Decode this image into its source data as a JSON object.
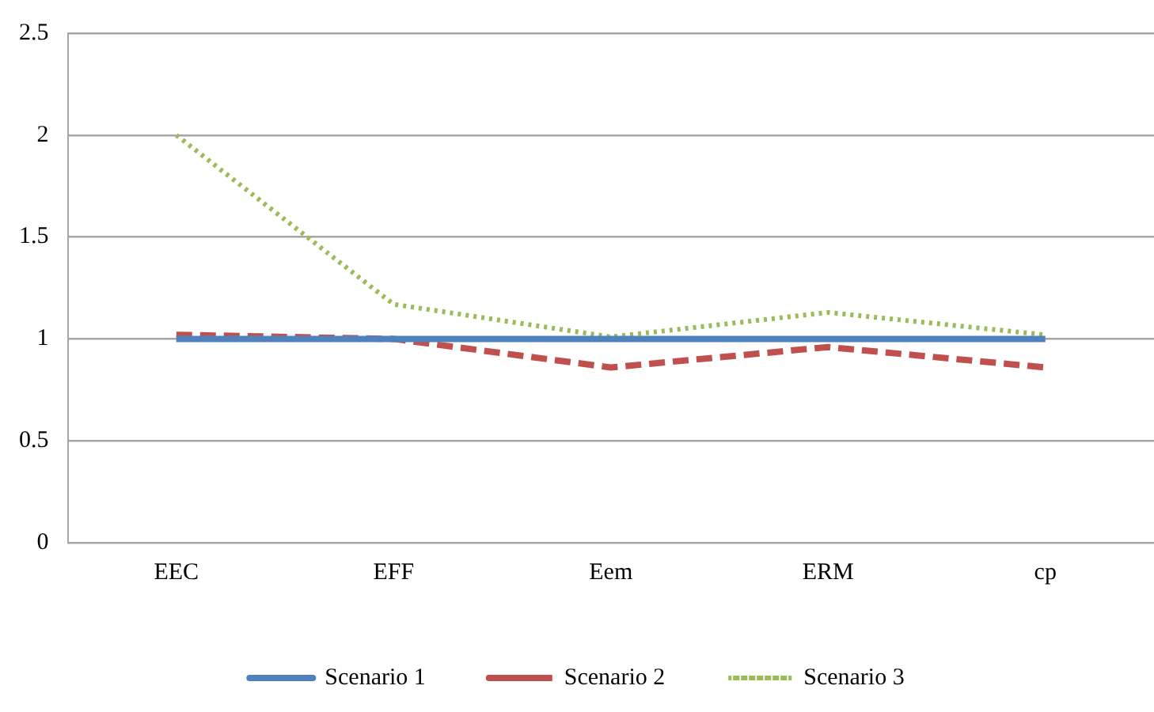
{
  "chart_data": {
    "type": "line",
    "categories": [
      "EEC",
      "EFF",
      "Eem",
      "ERM",
      "cp"
    ],
    "series": [
      {
        "name": "Scenario 1",
        "color": "#4f81bd",
        "values": [
          1,
          1,
          1,
          1,
          1
        ],
        "line_style": "solid"
      },
      {
        "name": "Scenario 2",
        "color": "#c0504d",
        "values": [
          1.02,
          1,
          0.86,
          0.96,
          0.86
        ],
        "line_style": "dashed"
      },
      {
        "name": "Scenario 3",
        "color": "#9bbb59",
        "values": [
          2,
          1.17,
          1.01,
          1.13,
          1.02
        ],
        "line_style": "dotted"
      }
    ],
    "ylim": [
      0,
      2.5
    ],
    "yticks": [
      0,
      0.5,
      1,
      1.5,
      2,
      2.5
    ],
    "grid": "y",
    "legend": "bottom",
    "marker": "none"
  }
}
